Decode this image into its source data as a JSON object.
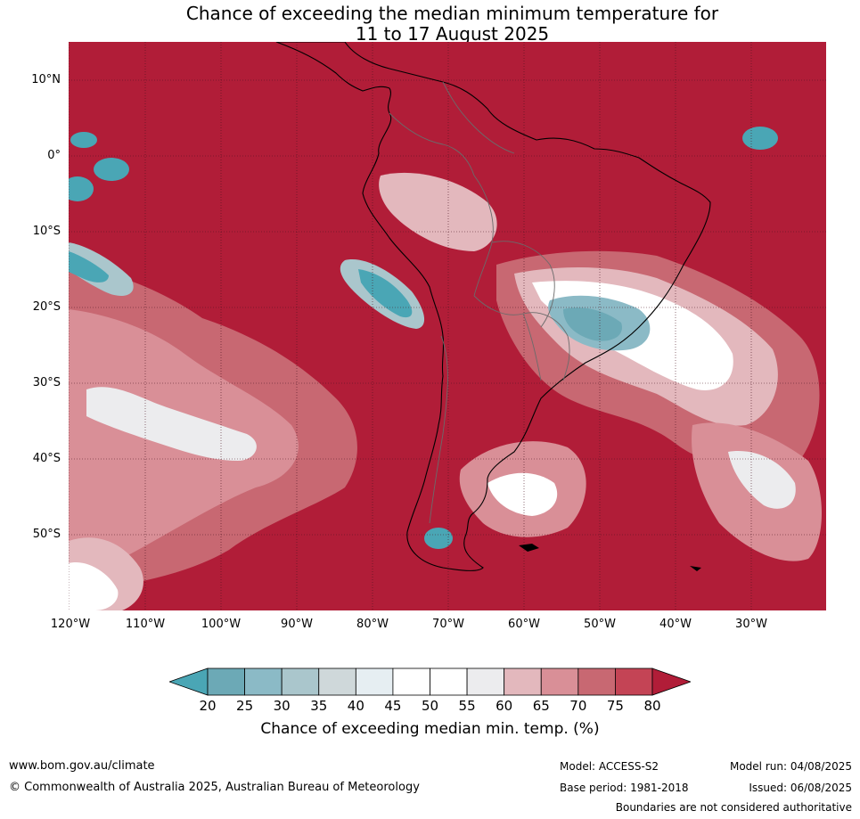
{
  "title": {
    "line1": "Chance of exceeding the median minimum temperature for",
    "line2": "11 to 17 August 2025"
  },
  "map": {
    "lat_labels": [
      "10°N",
      "0°",
      "10°S",
      "20°S",
      "30°S",
      "40°S",
      "50°S"
    ],
    "lon_labels": [
      "120°W",
      "110°W",
      "100°W",
      "90°W",
      "80°W",
      "70°W",
      "60°W",
      "50°W",
      "40°W",
      "30°W"
    ],
    "colors": {
      "above_80": "#b11d38",
      "p75_80": "#c44455",
      "p70_75": "#c86872",
      "p65_70": "#d98f97",
      "p60_65": "#e3b8bd",
      "p55_60": "#ececee",
      "p45_55": "#ffffff",
      "p40_45": "#e6eef2",
      "p35_40": "#cfd8da",
      "p30_35": "#aac6cc",
      "p25_30": "#8bbac6",
      "p20_25": "#6ca9b6",
      "below_20": "#4aa6b5"
    }
  },
  "colorbar": {
    "ticks": [
      "20",
      "25",
      "30",
      "35",
      "40",
      "45",
      "50",
      "55",
      "60",
      "65",
      "70",
      "75",
      "80"
    ],
    "colors": [
      "#4aa6b5",
      "#6ca9b6",
      "#8bbac6",
      "#aac6cc",
      "#cfd8da",
      "#e6eef2",
      "#ffffff",
      "#ffffff",
      "#ececee",
      "#e3b8bd",
      "#d98f97",
      "#c86872",
      "#c44455",
      "#b11d38"
    ],
    "label": "Chance of exceeding median min. temp. (%)"
  },
  "footer": {
    "website": "www.bom.gov.au/climate",
    "copyright": "© Commonwealth of Australia 2025, Australian Bureau of Meteorology",
    "model": "Model: ACCESS-S2",
    "model_run": "Model run: 04/08/2025",
    "base_period": "Base period: 1981-2018",
    "issued": "Issued: 06/08/2025",
    "disclaimer": "Boundaries are not considered authoritative"
  }
}
